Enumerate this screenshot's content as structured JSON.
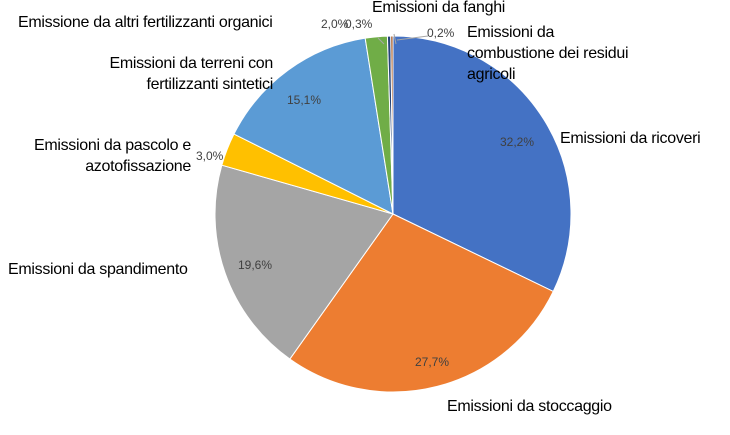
{
  "chart_data": {
    "type": "pie",
    "categories": [
      "Emissioni da ricoveri",
      "Emissioni da stoccaggio",
      "Emissioni da spandimento",
      "Emissioni da pascolo e azotofissazione",
      "Emissioni da terreni con fertilizzanti sintetici",
      "Emissione da altri fertilizzanti organici",
      "Emissioni da fanghi",
      "Emissioni da combustione dei residui agricoli"
    ],
    "values": [
      32.2,
      27.7,
      19.6,
      3.0,
      15.1,
      2.0,
      0.3,
      0.2
    ],
    "value_labels": [
      "32,2%",
      "27,7%",
      "19,6%",
      "3,0%",
      "15,1%",
      "2,0%",
      "0,3%",
      "0,2%"
    ],
    "colors": [
      "#4472c4",
      "#ed7d31",
      "#a5a5a5",
      "#ffc000",
      "#5b9bd5",
      "#70ad47",
      "#264478",
      "#9e480e"
    ]
  }
}
